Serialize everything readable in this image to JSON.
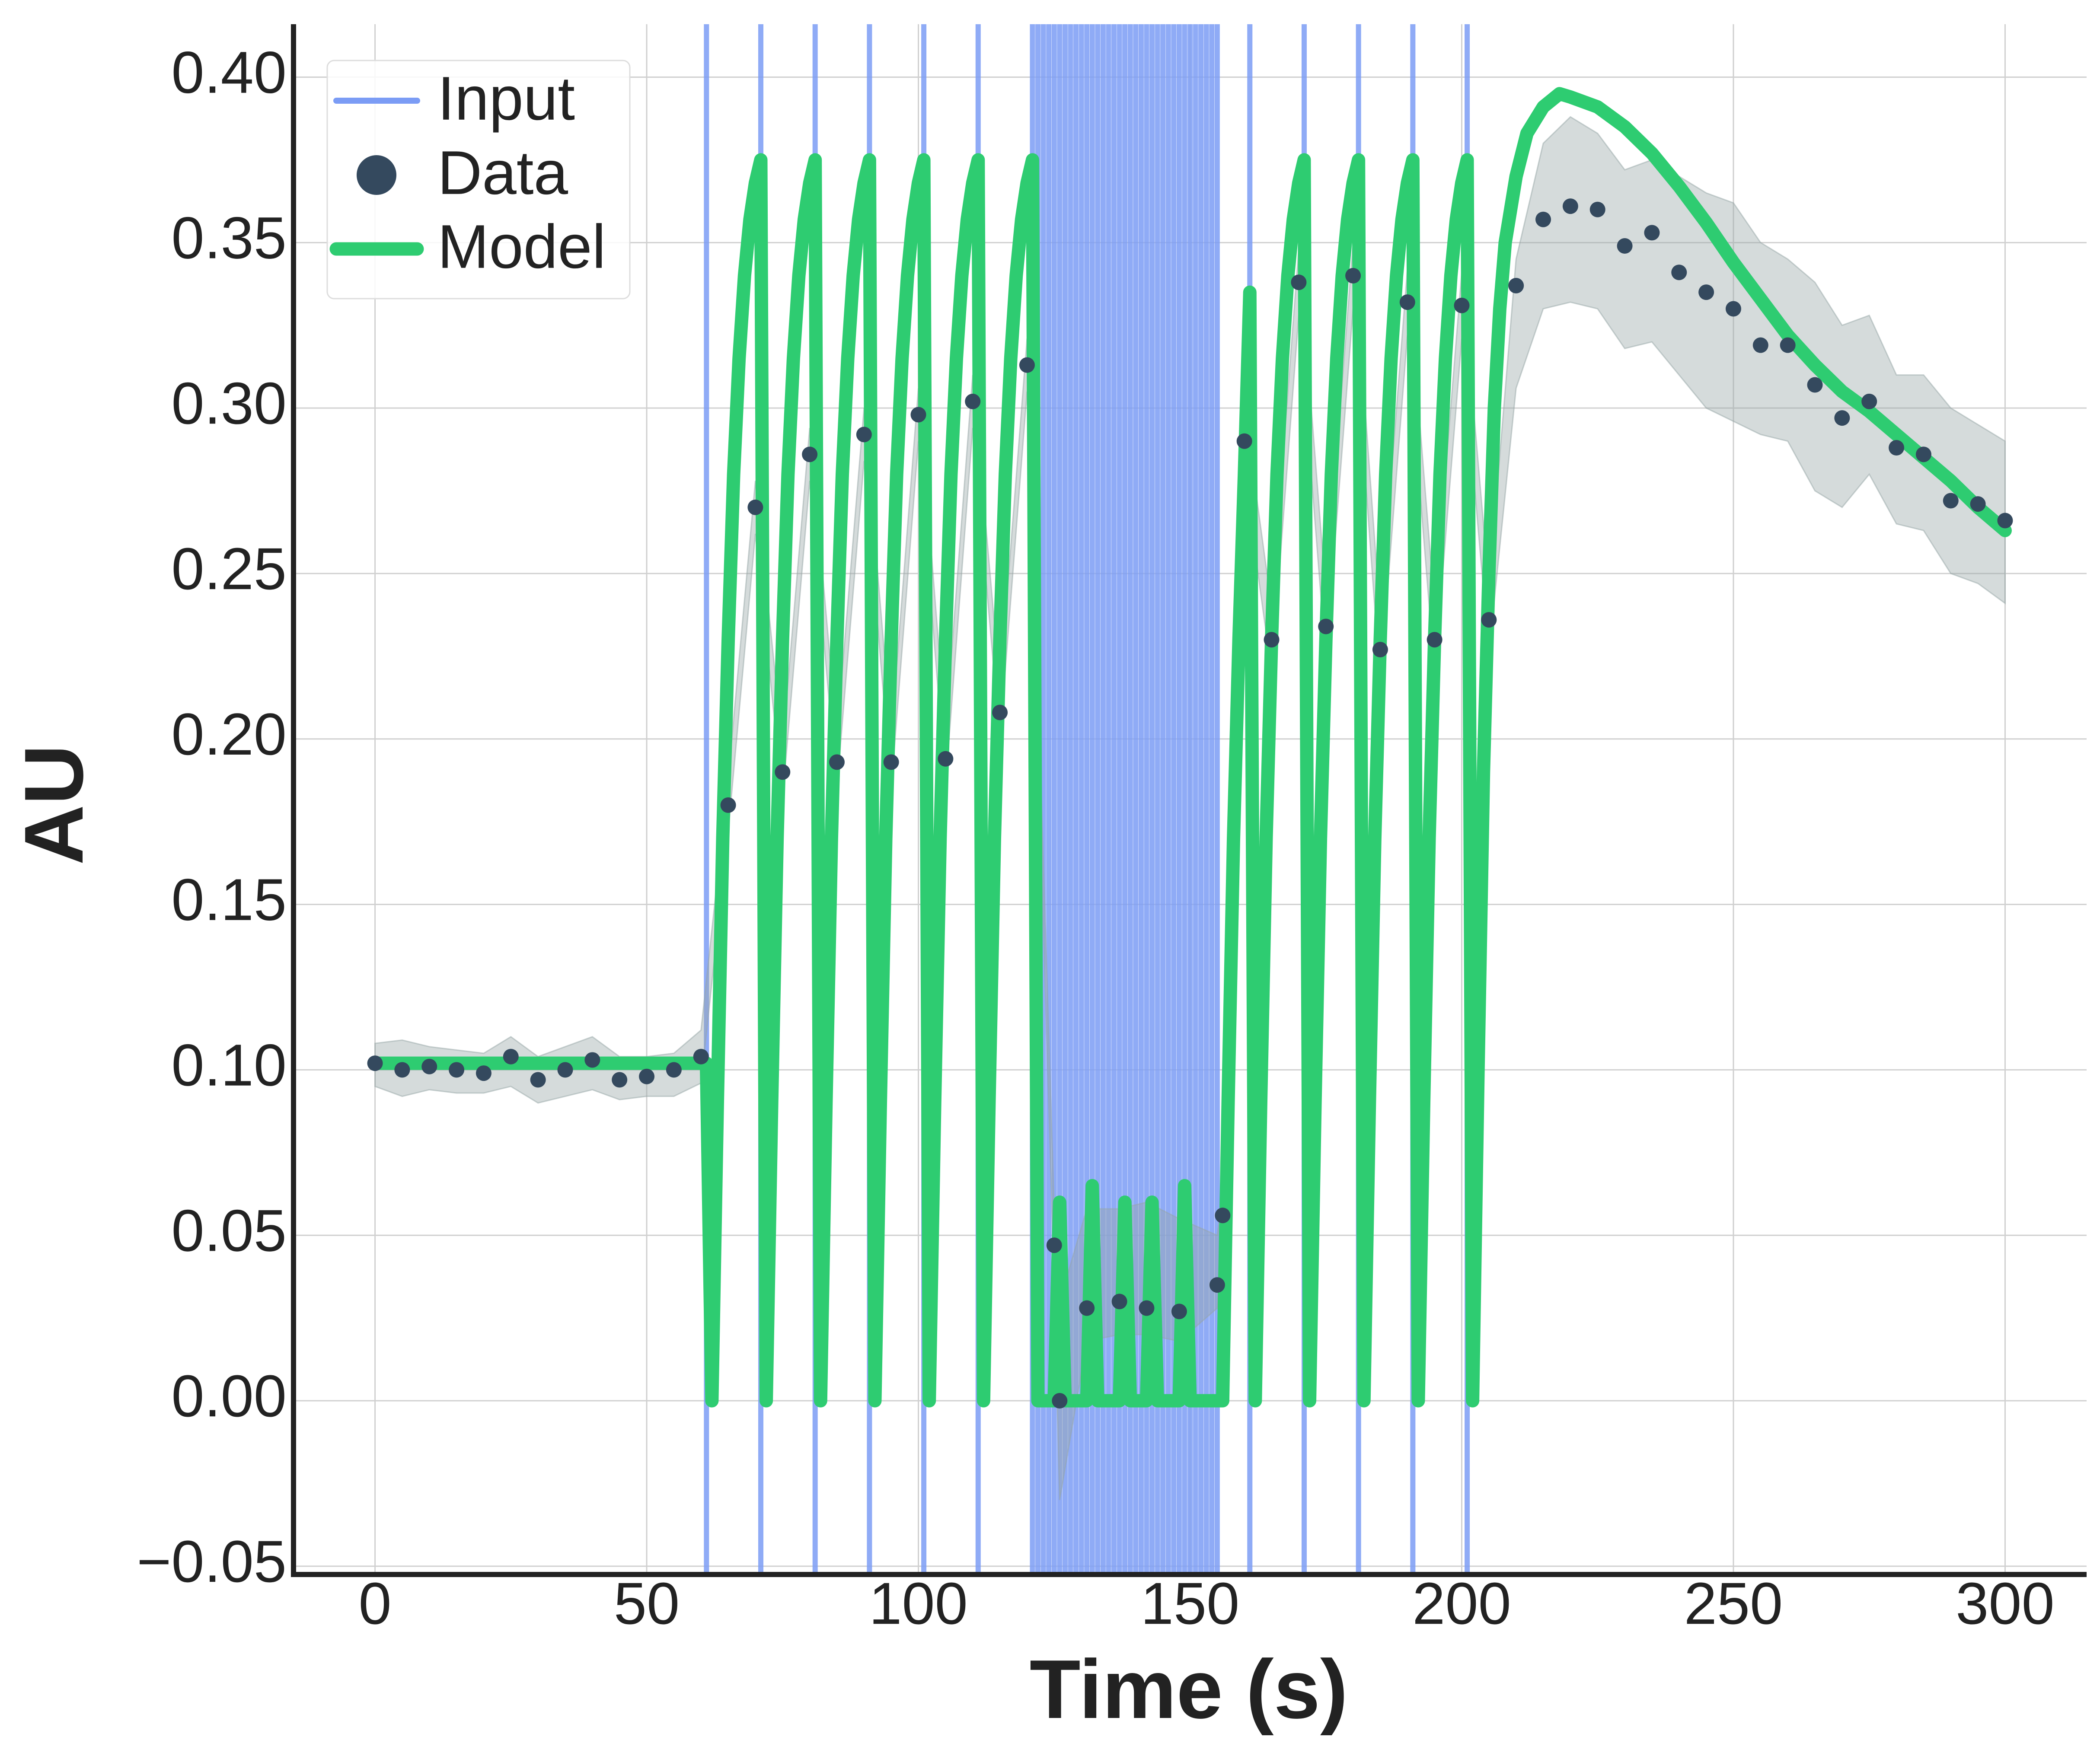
{
  "chart_data": {
    "type": "line",
    "x_label": "Time (s)",
    "y_label": "AU",
    "xlim": [
      -15,
      315
    ],
    "ylim": [
      -0.0525,
      0.416
    ],
    "xticks": [
      0,
      50,
      100,
      150,
      200,
      250,
      300
    ],
    "yticks": [
      {
        "value": -0.05,
        "label": "−0.05"
      },
      {
        "value": 0,
        "label": "0.00"
      },
      {
        "value": 0.05,
        "label": "0.05"
      },
      {
        "value": 0.1,
        "label": "0.10"
      },
      {
        "value": 0.15,
        "label": "0.15"
      },
      {
        "value": 0.2,
        "label": "0.20"
      },
      {
        "value": 0.25,
        "label": "0.25"
      },
      {
        "value": 0.3,
        "label": "0.30"
      },
      {
        "value": 0.35,
        "label": "0.35"
      },
      {
        "value": 0.4,
        "label": "0.40"
      }
    ],
    "grid": true,
    "legend": "upper left",
    "input": {
      "name": "Input",
      "color": "#7b9cf5",
      "x": [
        61,
        71,
        81,
        91,
        101,
        111,
        121,
        122,
        123,
        124,
        125,
        126,
        127,
        128,
        129,
        130,
        131,
        132,
        133,
        134,
        135,
        136,
        137,
        138,
        139,
        140,
        141,
        142,
        143,
        144,
        145,
        146,
        147,
        148,
        149,
        150,
        151,
        152,
        153,
        154,
        155,
        161,
        171,
        181,
        191,
        201
      ]
    },
    "data": {
      "name": "Data",
      "color": "#34495e",
      "x": [
        0,
        5,
        10,
        15,
        20,
        25,
        30,
        35,
        40,
        45,
        50,
        55,
        60,
        65,
        70,
        75,
        80,
        85,
        90,
        95,
        100,
        105,
        110,
        115,
        120,
        125,
        126,
        131,
        137,
        142,
        148,
        155,
        156,
        160,
        165,
        170,
        175,
        180,
        185,
        190,
        195,
        200,
        205,
        210,
        215,
        220,
        225,
        230,
        235,
        240,
        245,
        250,
        255,
        260,
        265,
        270,
        275,
        280,
        285,
        290,
        295,
        300
      ],
      "values": [
        0.102,
        0.1,
        0.101,
        0.1,
        0.099,
        0.104,
        0.097,
        0.1,
        0.103,
        0.097,
        0.098,
        0.1,
        0.104,
        0.18,
        0.27,
        0.19,
        0.286,
        0.193,
        0.292,
        0.193,
        0.298,
        0.194,
        0.302,
        0.208,
        0.313,
        0.047,
        0,
        0.028,
        0.03,
        0.028,
        0.027,
        0.035,
        0.056,
        0.29,
        0.23,
        0.338,
        0.234,
        0.34,
        0.227,
        0.332,
        0.23,
        0.331,
        0.236,
        0.337,
        0.357,
        0.361,
        0.36,
        0.349,
        0.353,
        0.341,
        0.335,
        0.33,
        0.319,
        0.319,
        0.307,
        0.297,
        0.302,
        0.288,
        0.286,
        0.272,
        0.271,
        0.266
      ]
    },
    "band": {
      "color": "#95a5a6",
      "lower": [
        0.095,
        0.092,
        0.094,
        0.093,
        0.093,
        0.095,
        0.09,
        0.092,
        0.094,
        0.091,
        0.092,
        0.092,
        0.096,
        0.172,
        0.262,
        0.182,
        0.278,
        0.185,
        0.284,
        0.185,
        0.29,
        0.186,
        0.294,
        0.2,
        0.305,
        0.035,
        -0.03,
        0.018,
        0.02,
        0.02,
        0.018,
        0.028,
        0.05,
        0.28,
        0.22,
        0.328,
        0.224,
        0.33,
        0.217,
        0.322,
        0.22,
        0.321,
        0.226,
        0.306,
        0.33,
        0.332,
        0.33,
        0.318,
        0.32,
        0.31,
        0.3,
        0.296,
        0.292,
        0.29,
        0.275,
        0.27,
        0.28,
        0.265,
        0.263,
        0.25,
        0.247,
        0.241
      ],
      "upper": [
        0.108,
        0.109,
        0.107,
        0.106,
        0.105,
        0.11,
        0.104,
        0.107,
        0.11,
        0.104,
        0.104,
        0.105,
        0.112,
        0.188,
        0.278,
        0.198,
        0.294,
        0.201,
        0.3,
        0.201,
        0.306,
        0.202,
        0.31,
        0.216,
        0.321,
        0.058,
        0.03,
        0.058,
        0.058,
        0.06,
        0.055,
        0.05,
        0.062,
        0.3,
        0.24,
        0.348,
        0.244,
        0.35,
        0.237,
        0.342,
        0.24,
        0.341,
        0.246,
        0.345,
        0.38,
        0.388,
        0.383,
        0.372,
        0.375,
        0.37,
        0.365,
        0.362,
        0.35,
        0.345,
        0.338,
        0.325,
        0.328,
        0.31,
        0.31,
        0.3,
        0.295,
        0.29
      ]
    },
    "model": {
      "name": "Model",
      "color": "#2ecc71",
      "x": [
        0,
        61,
        62,
        63,
        64,
        65,
        66,
        67,
        68,
        69,
        70,
        71,
        72,
        73,
        74,
        75,
        76,
        77,
        78,
        79,
        80,
        81,
        82,
        83,
        84,
        85,
        86,
        87,
        88,
        89,
        90,
        91,
        92,
        93,
        94,
        95,
        96,
        97,
        98,
        99,
        100,
        101,
        102,
        103,
        104,
        105,
        106,
        107,
        108,
        109,
        110,
        111,
        112,
        113,
        114,
        115,
        116,
        117,
        118,
        119,
        120,
        121,
        122,
        125,
        126,
        127,
        131,
        132,
        133,
        137,
        138,
        139,
        142,
        143,
        144,
        148,
        149,
        150,
        156,
        157,
        158,
        159,
        160,
        161,
        162,
        163,
        164,
        165,
        166,
        167,
        168,
        169,
        170,
        171,
        172,
        173,
        174,
        175,
        176,
        177,
        178,
        179,
        180,
        181,
        182,
        183,
        184,
        185,
        186,
        187,
        188,
        189,
        190,
        191,
        192,
        193,
        194,
        195,
        196,
        197,
        198,
        199,
        200,
        201,
        202,
        203,
        204,
        205,
        206,
        207,
        208,
        210,
        212,
        215,
        218,
        220,
        225,
        230,
        235,
        240,
        245,
        250,
        255,
        260,
        265,
        270,
        275,
        280,
        285,
        290,
        295,
        300
      ],
      "values": [
        0.102,
        0.102,
        0,
        0.09,
        0.17,
        0.23,
        0.28,
        0.315,
        0.34,
        0.357,
        0.368,
        0.375,
        0,
        0.09,
        0.17,
        0.23,
        0.28,
        0.315,
        0.34,
        0.357,
        0.368,
        0.375,
        0,
        0.09,
        0.17,
        0.23,
        0.28,
        0.315,
        0.34,
        0.357,
        0.368,
        0.375,
        0,
        0.09,
        0.17,
        0.23,
        0.28,
        0.315,
        0.34,
        0.357,
        0.368,
        0.375,
        0,
        0.09,
        0.17,
        0.23,
        0.28,
        0.315,
        0.34,
        0.357,
        0.368,
        0.375,
        0,
        0.09,
        0.17,
        0.23,
        0.28,
        0.315,
        0.34,
        0.357,
        0.368,
        0.375,
        0,
        0,
        0.06,
        0,
        0,
        0.065,
        0,
        0,
        0.06,
        0,
        0,
        0.06,
        0,
        0,
        0.065,
        0,
        0,
        0.09,
        0.17,
        0.23,
        0.28,
        0.335,
        0,
        0.09,
        0.17,
        0.23,
        0.28,
        0.315,
        0.34,
        0.357,
        0.368,
        0.375,
        0,
        0.09,
        0.17,
        0.23,
        0.28,
        0.315,
        0.34,
        0.357,
        0.368,
        0.375,
        0,
        0.09,
        0.17,
        0.23,
        0.28,
        0.315,
        0.34,
        0.357,
        0.368,
        0.375,
        0,
        0.09,
        0.17,
        0.23,
        0.28,
        0.315,
        0.34,
        0.357,
        0.368,
        0.375,
        0,
        0.1,
        0.19,
        0.25,
        0.3,
        0.33,
        0.35,
        0.37,
        0.383,
        0.391,
        0.395,
        0.394,
        0.391,
        0.385,
        0.377,
        0.367,
        0.356,
        0.344,
        0.333,
        0.322,
        0.313,
        0.305,
        0.299,
        0.292,
        0.285,
        0.278,
        0.27,
        0.263
      ]
    }
  }
}
